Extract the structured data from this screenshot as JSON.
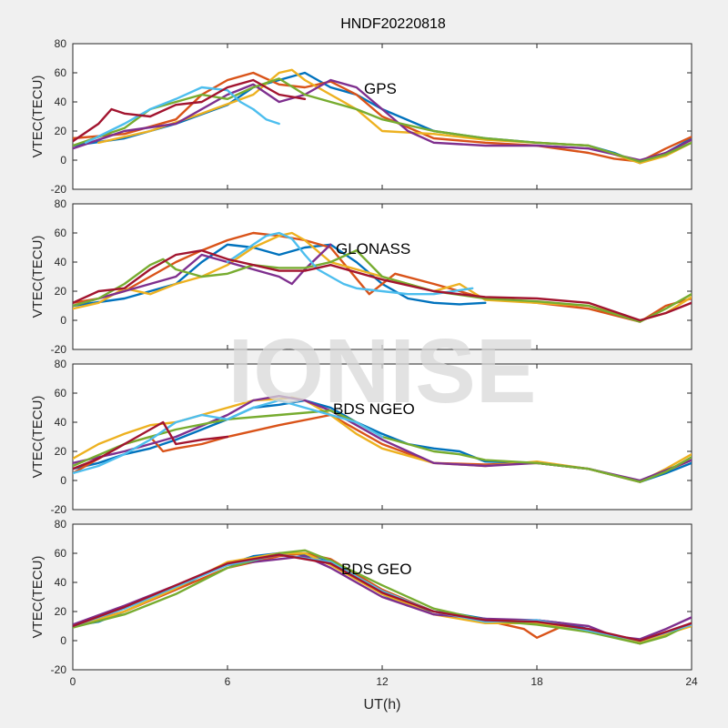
{
  "title": "HNDF20220818",
  "xlabel": "UT(h)",
  "watermark": "IONISE",
  "chart_data": [
    {
      "type": "line",
      "label": "GPS",
      "ylabel": "VTEC(TECU)",
      "xlim": [
        0,
        24
      ],
      "ylim": [
        -20,
        80
      ],
      "xticks": [
        0,
        6,
        12,
        18,
        24
      ],
      "yticks": [
        -20,
        0,
        20,
        40,
        60,
        80
      ],
      "series": [
        {
          "color": "#0072bd",
          "x": [
            0,
            2,
            4,
            6,
            7,
            8,
            9,
            10,
            11,
            12,
            14,
            16,
            18,
            20,
            21,
            22,
            23,
            24
          ],
          "y": [
            10,
            15,
            25,
            38,
            50,
            55,
            60,
            50,
            45,
            35,
            20,
            15,
            12,
            10,
            5,
            -2,
            5,
            15
          ]
        },
        {
          "color": "#d95319",
          "x": [
            0,
            2,
            4,
            5,
            6,
            7,
            8,
            9,
            10,
            11,
            12,
            14,
            16,
            18,
            20,
            21,
            22,
            23,
            24
          ],
          "y": [
            15,
            18,
            28,
            45,
            55,
            60,
            52,
            50,
            54,
            45,
            30,
            15,
            12,
            10,
            5,
            1,
            -1,
            8,
            16
          ]
        },
        {
          "color": "#edb120",
          "x": [
            1,
            3,
            5,
            7,
            8,
            8.5,
            9,
            10,
            11,
            12,
            14,
            16,
            18,
            20,
            21,
            22,
            23,
            24
          ],
          "y": [
            12,
            20,
            32,
            45,
            60,
            62,
            55,
            45,
            35,
            20,
            18,
            14,
            12,
            10,
            4,
            -2,
            3,
            12
          ]
        },
        {
          "color": "#7e2f8e",
          "x": [
            0,
            2,
            4,
            6,
            7,
            8,
            9,
            10,
            11,
            12,
            13,
            14,
            16,
            18,
            20,
            22,
            23,
            24
          ],
          "y": [
            8,
            20,
            25,
            45,
            52,
            40,
            45,
            55,
            50,
            35,
            20,
            12,
            10,
            10,
            8,
            0,
            5,
            14
          ]
        },
        {
          "color": "#77ac30",
          "x": [
            0,
            2,
            3,
            4,
            5,
            6,
            7,
            8,
            9,
            10,
            11,
            12,
            14,
            16,
            18,
            20,
            22,
            23,
            24
          ],
          "y": [
            10,
            22,
            35,
            40,
            45,
            42,
            50,
            56,
            45,
            40,
            35,
            28,
            20,
            15,
            12,
            10,
            -1,
            4,
            12
          ]
        },
        {
          "color": "#4dbeee",
          "x": [
            0.5,
            2,
            3,
            4,
            5,
            6,
            6.5,
            7,
            7.5,
            8
          ],
          "y": [
            12,
            25,
            35,
            42,
            50,
            48,
            40,
            35,
            28,
            25
          ]
        },
        {
          "color": "#a2142f",
          "x": [
            0,
            1,
            1.5,
            2,
            3,
            4,
            5,
            6,
            7,
            8,
            9
          ],
          "y": [
            13,
            25,
            35,
            32,
            30,
            38,
            40,
            50,
            55,
            45,
            42
          ]
        }
      ]
    },
    {
      "type": "line",
      "label": "GLONASS",
      "ylabel": "VTEC(TECU)",
      "xlim": [
        0,
        24
      ],
      "ylim": [
        -20,
        80
      ],
      "xticks": [
        0,
        6,
        12,
        18,
        24
      ],
      "yticks": [
        -20,
        0,
        20,
        40,
        60,
        80
      ],
      "series": [
        {
          "color": "#0072bd",
          "x": [
            0,
            2,
            4,
            5,
            6,
            7,
            8,
            9,
            10,
            11,
            12,
            13,
            14,
            15,
            16
          ],
          "y": [
            10,
            15,
            25,
            40,
            52,
            50,
            45,
            50,
            52,
            40,
            25,
            15,
            12,
            11,
            12
          ]
        },
        {
          "color": "#d95319",
          "x": [
            0,
            1,
            2,
            3,
            4,
            5,
            6,
            7,
            8,
            9,
            10,
            11.5,
            12.5,
            14,
            16,
            18,
            20,
            22,
            23,
            24
          ],
          "y": [
            12,
            15,
            20,
            30,
            40,
            48,
            55,
            60,
            58,
            55,
            50,
            18,
            32,
            25,
            15,
            12,
            8,
            -1,
            10,
            15
          ]
        },
        {
          "color": "#edb120",
          "x": [
            0,
            1,
            2,
            3,
            4,
            5,
            6,
            7,
            8,
            8.5,
            9,
            10,
            14,
            15,
            16,
            18,
            20,
            22,
            23,
            24
          ],
          "y": [
            8,
            12,
            22,
            18,
            25,
            30,
            38,
            50,
            58,
            60,
            55,
            40,
            20,
            25,
            14,
            12,
            10,
            0,
            5,
            16
          ]
        },
        {
          "color": "#7e2f8e",
          "x": [
            0,
            2,
            4,
            5,
            6,
            7,
            8,
            8.5,
            9,
            10
          ],
          "y": [
            10,
            20,
            30,
            45,
            40,
            35,
            30,
            25,
            35,
            52
          ]
        },
        {
          "color": "#77ac30",
          "x": [
            0,
            1,
            2,
            3,
            3.5,
            4,
            5,
            6,
            7,
            8,
            9,
            10,
            11,
            12,
            14,
            16,
            18,
            20,
            22,
            23,
            24
          ],
          "y": [
            10,
            15,
            25,
            38,
            42,
            35,
            30,
            32,
            38,
            36,
            36,
            40,
            48,
            30,
            20,
            15,
            13,
            10,
            -1,
            8,
            18
          ]
        },
        {
          "color": "#4dbeee",
          "x": [
            6,
            7,
            7.5,
            8,
            8.5,
            9,
            9.5,
            10,
            10.5,
            11,
            12,
            13,
            14,
            15.5
          ],
          "y": [
            40,
            52,
            58,
            60,
            56,
            45,
            35,
            30,
            25,
            22,
            20,
            18,
            18,
            22
          ]
        },
        {
          "color": "#a2142f",
          "x": [
            0,
            1,
            2,
            3,
            4,
            5,
            6,
            7,
            8,
            9,
            10,
            12,
            14,
            16,
            18,
            20,
            22,
            23,
            24
          ],
          "y": [
            12,
            20,
            22,
            35,
            45,
            48,
            42,
            38,
            34,
            34,
            38,
            28,
            20,
            16,
            15,
            12,
            0,
            5,
            12
          ]
        }
      ]
    },
    {
      "type": "line",
      "label": "BDS NGEO",
      "ylabel": "VTEC(TECU)",
      "xlim": [
        0,
        24
      ],
      "ylim": [
        -20,
        80
      ],
      "xticks": [
        0,
        6,
        12,
        18,
        24
      ],
      "yticks": [
        -20,
        0,
        20,
        40,
        60,
        80
      ],
      "series": [
        {
          "color": "#0072bd",
          "x": [
            0,
            1,
            2,
            3,
            4,
            5,
            6,
            7,
            8,
            9,
            10,
            11,
            12,
            13,
            14,
            15,
            16,
            18,
            20,
            22,
            23,
            24
          ],
          "y": [
            8,
            12,
            18,
            22,
            28,
            35,
            42,
            50,
            52,
            55,
            50,
            40,
            32,
            25,
            22,
            20,
            13,
            12,
            8,
            -1,
            5,
            12
          ]
        },
        {
          "color": "#d95319",
          "x": [
            0,
            1,
            2,
            3,
            3.5,
            4,
            5,
            6,
            8,
            10,
            12,
            14,
            16,
            18,
            20,
            22,
            24
          ],
          "y": [
            5,
            15,
            25,
            30,
            20,
            22,
            25,
            30,
            38,
            45,
            25,
            12,
            11,
            12,
            8,
            -1,
            14
          ]
        },
        {
          "color": "#edb120",
          "x": [
            0,
            1,
            2,
            3,
            4,
            5,
            6,
            7,
            8,
            8.5,
            9,
            10,
            11,
            12,
            14,
            16,
            18,
            20,
            22,
            23,
            24
          ],
          "y": [
            15,
            25,
            32,
            38,
            40,
            45,
            50,
            55,
            56,
            57,
            55,
            45,
            32,
            22,
            12,
            10,
            13,
            8,
            -1,
            8,
            18
          ]
        },
        {
          "color": "#7e2f8e",
          "x": [
            0,
            2,
            4,
            6,
            7,
            8,
            9,
            10,
            11,
            12,
            13,
            14,
            16,
            18,
            20,
            22,
            24
          ],
          "y": [
            12,
            20,
            30,
            45,
            55,
            58,
            55,
            48,
            38,
            28,
            20,
            12,
            10,
            12,
            8,
            0,
            14
          ]
        },
        {
          "color": "#77ac30",
          "x": [
            0,
            2,
            4,
            6,
            8,
            10,
            11,
            12,
            13,
            14,
            15,
            16,
            18,
            20,
            22,
            23,
            24
          ],
          "y": [
            10,
            25,
            35,
            42,
            45,
            48,
            40,
            30,
            25,
            20,
            18,
            14,
            12,
            8,
            -1,
            6,
            16
          ]
        },
        {
          "color": "#4dbeee",
          "x": [
            0,
            1,
            2,
            3,
            4,
            5,
            6,
            7,
            8,
            9,
            10,
            11,
            12
          ],
          "y": [
            5,
            10,
            18,
            28,
            40,
            45,
            42,
            50,
            55,
            50,
            45,
            40,
            30
          ]
        },
        {
          "color": "#a2142f",
          "x": [
            0,
            1,
            2,
            3,
            3.5,
            4,
            5,
            6
          ],
          "y": [
            8,
            15,
            25,
            35,
            40,
            25,
            28,
            30
          ]
        }
      ]
    },
    {
      "type": "line",
      "label": "BDS GEO",
      "ylabel": "VTEC(TECU)",
      "xlim": [
        0,
        24
      ],
      "ylim": [
        -20,
        80
      ],
      "xticks": [
        0,
        6,
        12,
        18,
        24
      ],
      "yticks": [
        -20,
        0,
        20,
        40,
        60,
        80
      ],
      "series": [
        {
          "color": "#0072bd",
          "x": [
            0,
            1,
            2,
            3,
            4,
            5,
            6,
            7,
            8,
            9,
            10,
            11,
            12,
            13,
            14,
            15,
            16,
            17,
            18,
            19,
            20,
            21,
            22,
            23,
            24
          ],
          "y": [
            10,
            13,
            20,
            28,
            35,
            45,
            52,
            58,
            60,
            59,
            54,
            44,
            32,
            24,
            20,
            18,
            15,
            13,
            14,
            12,
            8,
            3,
            0,
            5,
            12
          ]
        },
        {
          "color": "#d95319",
          "x": [
            0,
            2,
            4,
            6,
            8,
            9,
            10,
            12,
            14,
            16,
            17.5,
            18,
            19,
            20,
            22,
            24
          ],
          "y": [
            10,
            20,
            35,
            50,
            58,
            60,
            56,
            35,
            20,
            14,
            8,
            2,
            10,
            7,
            -2,
            12
          ]
        },
        {
          "color": "#edb120",
          "x": [
            0,
            2,
            4,
            6,
            8,
            9,
            10,
            12,
            14,
            16,
            18,
            20,
            22,
            24
          ],
          "y": [
            9,
            20,
            36,
            54,
            60,
            60,
            52,
            32,
            18,
            12,
            12,
            6,
            -1,
            10
          ]
        },
        {
          "color": "#7e2f8e",
          "x": [
            0,
            2,
            4,
            6,
            8,
            9,
            10,
            12,
            14,
            16,
            18,
            20,
            21,
            22,
            23,
            24
          ],
          "y": [
            11,
            24,
            38,
            52,
            56,
            58,
            50,
            30,
            18,
            15,
            14,
            10,
            3,
            1,
            8,
            16
          ]
        },
        {
          "color": "#77ac30",
          "x": [
            0,
            2,
            4,
            6,
            8,
            9,
            10,
            12,
            14,
            16,
            18,
            20,
            22,
            23,
            24
          ],
          "y": [
            9,
            18,
            32,
            50,
            60,
            62,
            55,
            38,
            22,
            14,
            11,
            6,
            -2,
            3,
            12
          ]
        },
        {
          "color": "#4dbeee",
          "x": [
            0,
            2,
            4,
            6,
            8,
            10,
            12,
            14,
            16,
            18,
            20,
            22,
            24
          ],
          "y": [
            10,
            22,
            37,
            52,
            59,
            54,
            34,
            20,
            13,
            14,
            7,
            0,
            11
          ]
        },
        {
          "color": "#a2142f",
          "x": [
            0,
            2,
            4,
            6,
            8,
            10,
            12,
            14,
            16,
            18,
            20,
            22,
            24
          ],
          "y": [
            10,
            23,
            38,
            53,
            59,
            53,
            33,
            20,
            14,
            13,
            8,
            0,
            12
          ]
        }
      ]
    }
  ]
}
